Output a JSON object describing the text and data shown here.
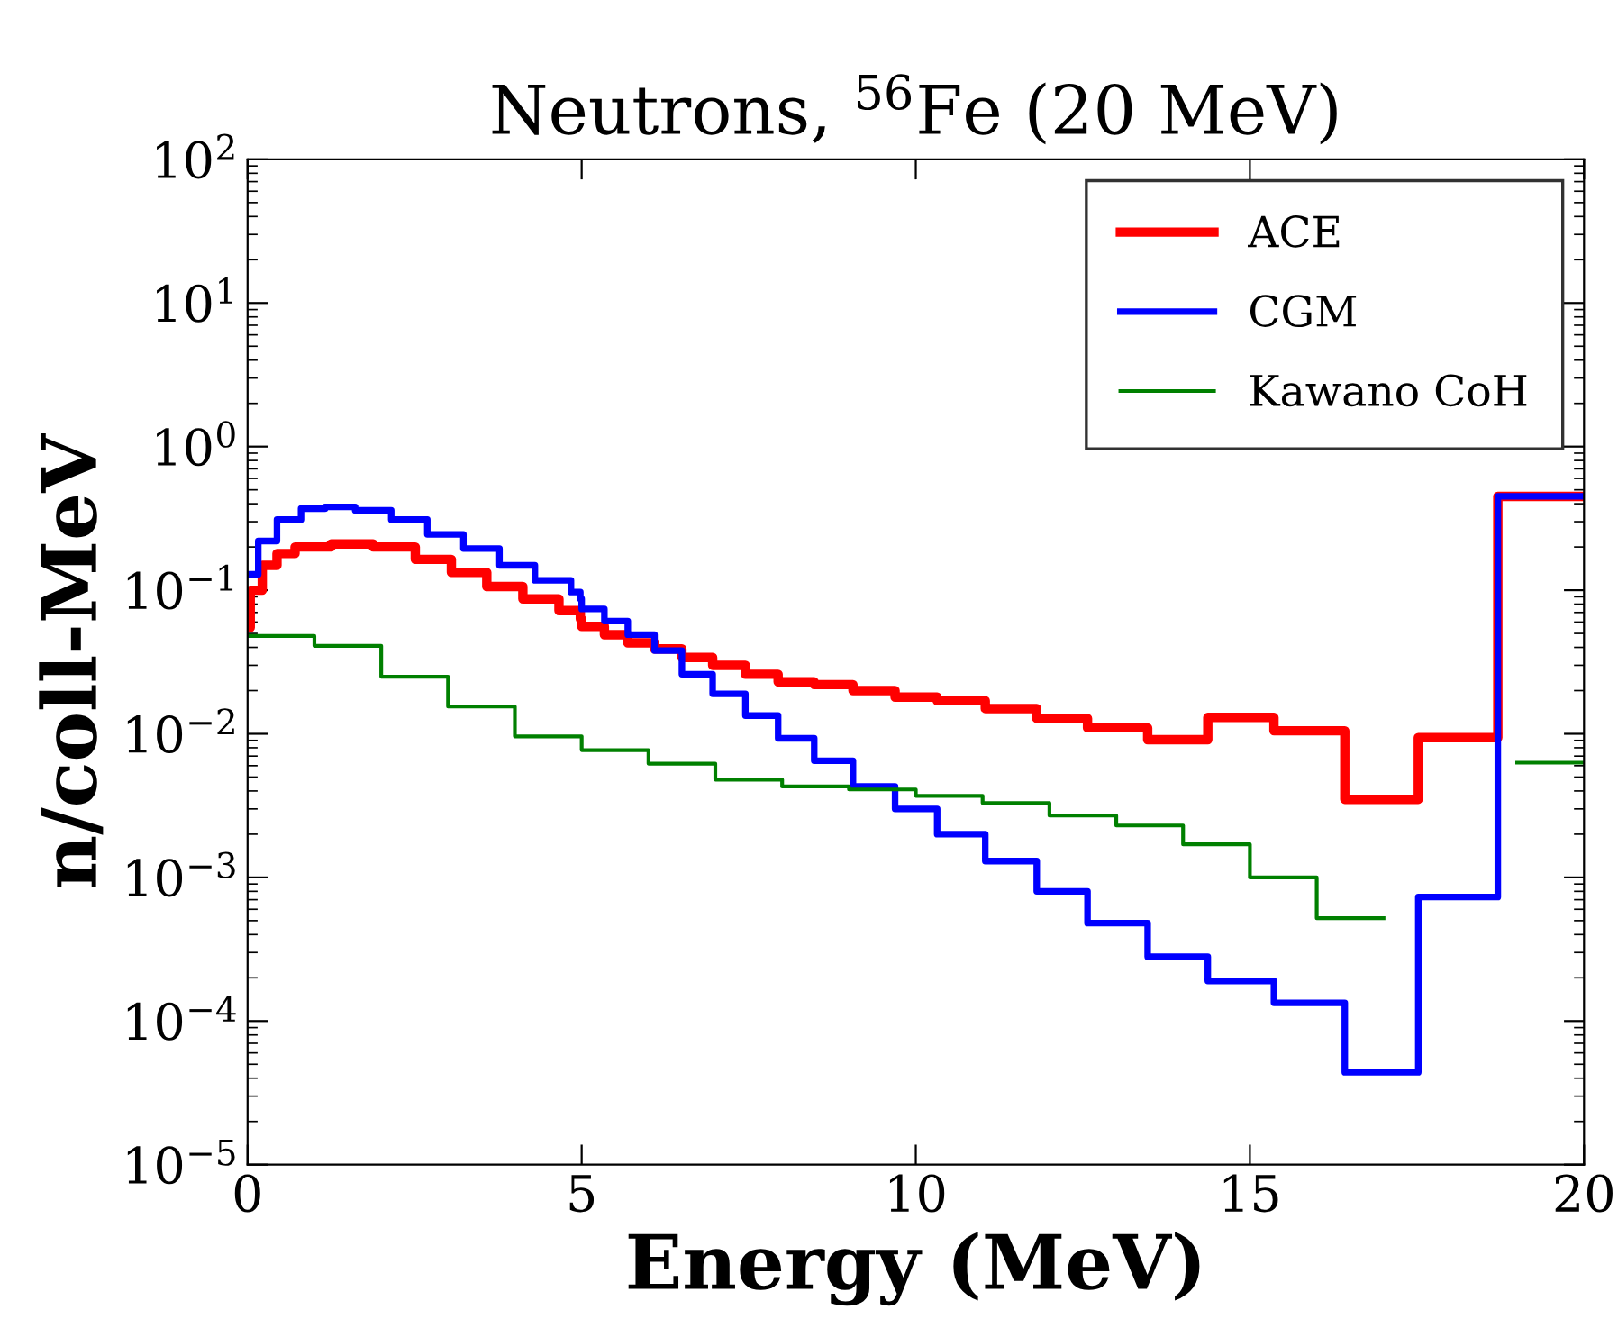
{
  "chart_data": {
    "type": "step",
    "title": "Neutrons, $^{56}$Fe (20 MeV)",
    "xlabel": "Energy (MeV)",
    "ylabel": "n/coll-MeV",
    "log": "y",
    "xlim": [
      0,
      20
    ],
    "xticks": [
      0,
      5,
      10,
      15,
      20
    ],
    "ylim": [
      1e-05,
      100
    ],
    "yticks": [
      {
        "value": 1e-05,
        "label": "10$^{−5}$"
      },
      {
        "value": 0.0001,
        "label": "10$^{−4}$"
      },
      {
        "value": 0.001,
        "label": "10$^{−3}$"
      },
      {
        "value": 0.01,
        "label": "10$^{−2}$"
      },
      {
        "value": 0.1,
        "label": "10$^{−1}$"
      },
      {
        "value": 1,
        "label": "10$^{0}$"
      },
      {
        "value": 10,
        "label": "10$^{1}$"
      },
      {
        "value": 100,
        "label": "10$^{2}$"
      }
    ],
    "grid": false,
    "legend": "top right",
    "series": [
      {
        "name": "ACE",
        "color": "#ff0000",
        "x": [
          0.0,
          0.04,
          0.22,
          0.44,
          0.71,
          1.25,
          1.88,
          2.51,
          3.05,
          3.58,
          4.12,
          4.66,
          4.98,
          5.0,
          5.34,
          5.69,
          6.09,
          6.5,
          6.96,
          7.45,
          7.94,
          8.48,
          9.06,
          9.69,
          10.32,
          11.04,
          11.81,
          12.57,
          13.47,
          14.37,
          15.36,
          16.42,
          17.52,
          18.71,
          20
        ],
        "values": [
          0.055,
          0.1,
          0.149,
          0.18,
          0.2,
          0.21,
          0.2,
          0.164,
          0.133,
          0.106,
          0.087,
          0.072,
          0.063,
          0.056,
          0.049,
          0.043,
          0.039,
          0.034,
          0.03,
          0.026,
          0.023,
          0.022,
          0.02,
          0.018,
          0.017,
          0.015,
          0.0128,
          0.011,
          0.0091,
          0.013,
          0.0105,
          0.0035,
          0.0094,
          0.45,
          0.45
        ]
      },
      {
        "name": "CGM",
        "color": "#0000ff",
        "x": [
          0.0,
          0.16,
          0.44,
          0.8,
          1.16,
          1.61,
          2.15,
          2.69,
          3.23,
          3.77,
          4.3,
          4.84,
          4.98,
          5.0,
          5.34,
          5.69,
          6.09,
          6.5,
          6.96,
          7.45,
          7.94,
          8.48,
          9.06,
          9.69,
          10.32,
          11.04,
          11.81,
          12.57,
          13.47,
          14.37,
          15.36,
          16.42,
          17.52,
          18.71,
          20
        ],
        "values": [
          0.129,
          0.22,
          0.31,
          0.37,
          0.38,
          0.36,
          0.31,
          0.245,
          0.195,
          0.149,
          0.117,
          0.097,
          0.087,
          0.074,
          0.061,
          0.049,
          0.038,
          0.026,
          0.019,
          0.0134,
          0.0093,
          0.0065,
          0.0043,
          0.003,
          0.002,
          0.0013,
          0.0008,
          0.00048,
          0.00028,
          0.00019,
          0.000134,
          4.4e-05,
          0.00073,
          0.45,
          0.45
        ]
      },
      {
        "name": "Kawano CoH",
        "color": "#008000",
        "x": [
          0,
          1,
          2,
          3,
          4,
          5,
          6,
          7,
          8,
          9,
          10,
          11,
          12,
          13,
          14,
          15,
          16,
          17,
          19,
          20
        ],
        "values": [
          0.048,
          0.041,
          0.025,
          0.0155,
          0.0096,
          0.0077,
          0.0062,
          0.0048,
          0.0043,
          0.0041,
          0.0037,
          0.0033,
          0.0027,
          0.0023,
          0.0017,
          0.001,
          0.00052,
          null,
          0.0063,
          0.0063
        ]
      }
    ]
  }
}
